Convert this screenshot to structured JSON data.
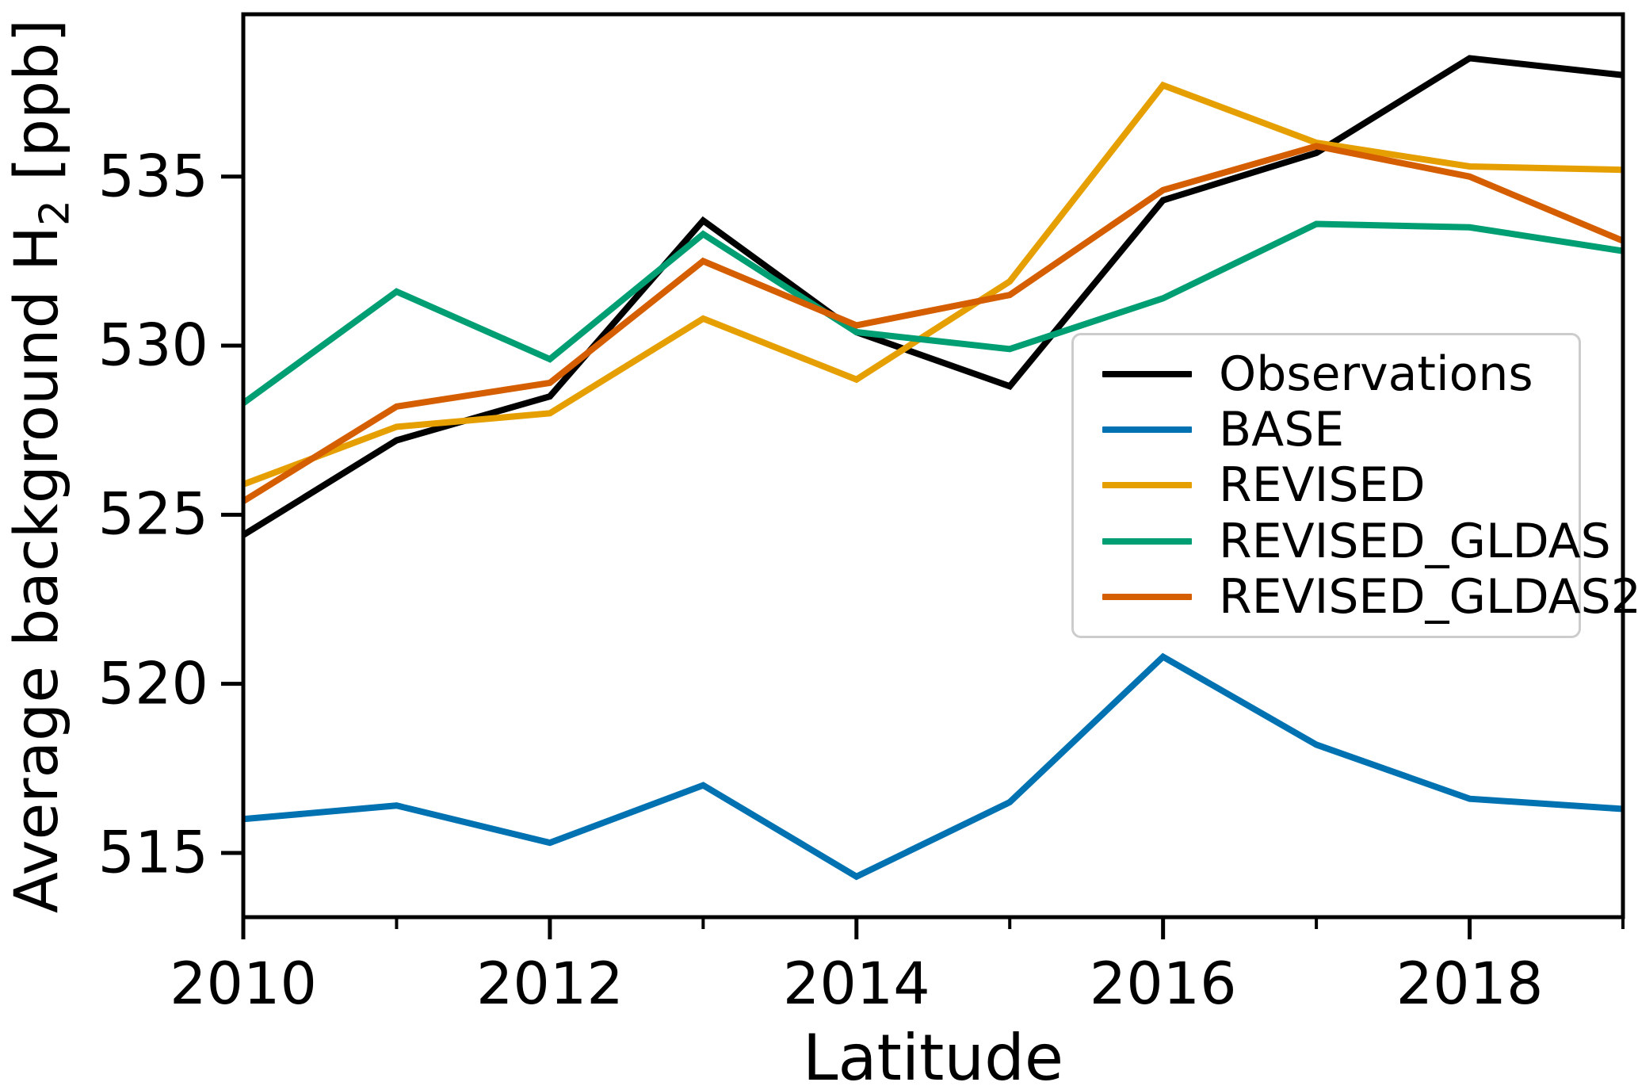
{
  "chart_data": {
    "type": "line",
    "title": "",
    "xlabel": "Latitude",
    "ylabel": "Average background H2 [ppb]",
    "ylabel_parts": {
      "pre": "Average background H",
      "sub": "2",
      "post": " [ppb]"
    },
    "x": [
      2010,
      2011,
      2012,
      2013,
      2014,
      2015,
      2016,
      2017,
      2018,
      2019
    ],
    "xlim": [
      2010,
      2019
    ],
    "ylim": [
      513.1,
      539.8
    ],
    "yticks": [
      515,
      520,
      525,
      530,
      535
    ],
    "xticks_major": [
      2010,
      2012,
      2014,
      2016,
      2018
    ],
    "xticks_minor": [
      2011,
      2013,
      2015,
      2017,
      2019
    ],
    "grid": false,
    "legend_position": "inside center-right",
    "series": [
      {
        "name": "Observations",
        "color": "#000000",
        "values": [
          524.4,
          527.2,
          528.5,
          533.7,
          530.4,
          528.8,
          534.3,
          535.7,
          538.5,
          538.0
        ]
      },
      {
        "name": "BASE",
        "color": "#0072B2",
        "values": [
          516.0,
          516.4,
          515.3,
          517.0,
          514.3,
          516.5,
          520.8,
          518.2,
          516.6,
          516.3
        ]
      },
      {
        "name": "REVISED",
        "color": "#E69F00",
        "values": [
          525.9,
          527.6,
          528.0,
          530.8,
          529.0,
          531.9,
          537.7,
          536.0,
          535.3,
          535.2
        ]
      },
      {
        "name": "REVISED_GLDAS",
        "color": "#009E73",
        "values": [
          528.3,
          531.6,
          529.6,
          533.3,
          530.4,
          529.9,
          531.4,
          533.6,
          533.5,
          532.8
        ]
      },
      {
        "name": "REVISED_GLDAS2",
        "color": "#D55E00",
        "values": [
          525.4,
          528.2,
          528.9,
          532.5,
          530.6,
          531.5,
          534.6,
          535.9,
          535.0,
          533.1
        ]
      }
    ],
    "axis_color": "#000000",
    "background_color": "#ffffff"
  }
}
